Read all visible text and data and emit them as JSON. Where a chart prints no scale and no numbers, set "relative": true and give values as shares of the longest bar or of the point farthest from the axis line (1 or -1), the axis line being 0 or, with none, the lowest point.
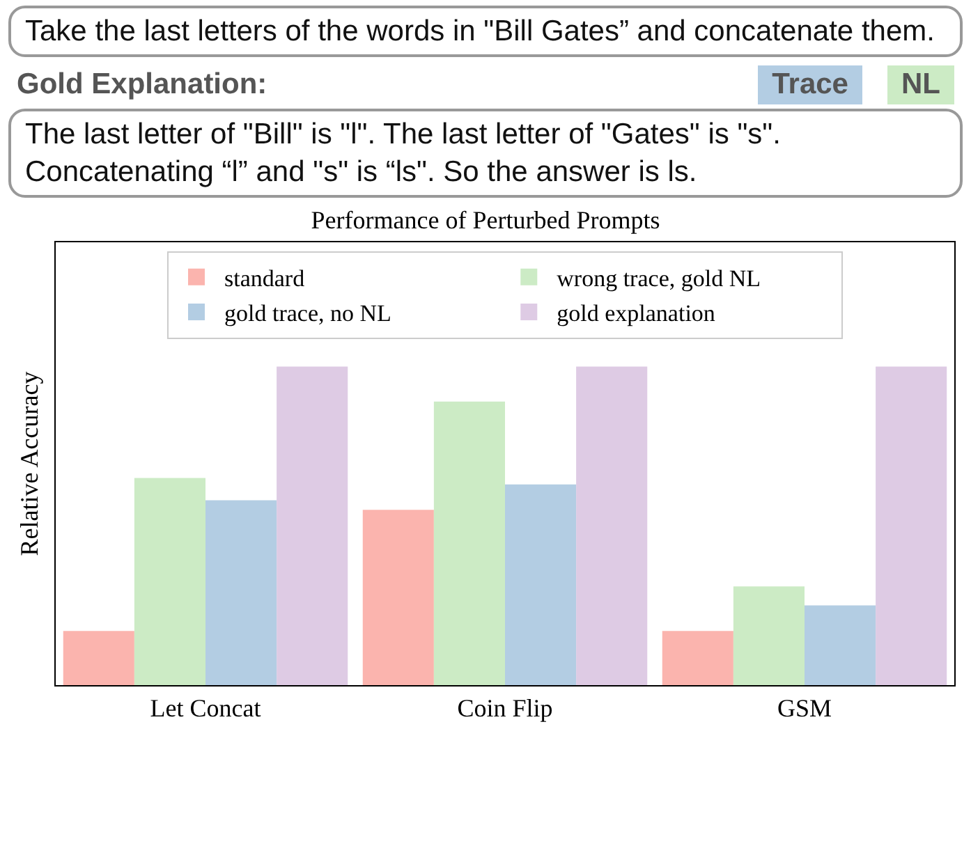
{
  "chart_data": {
    "type": "bar",
    "title": "Performance of Perturbed Prompts",
    "ylabel": "Relative Accuracy",
    "relative": true,
    "legend": "top",
    "grid": false,
    "annotations": [
      "Take the last letters of the words in \"Bill Gates” and concatenate them.",
      "Gold Explanation:",
      "Trace",
      "NL",
      "The last letter of  \"Bill\" is \"l\". The last letter of \"Gates\" is \"s\". Concatenating “l” and \"s\" is “ls\". So the answer is ls."
    ],
    "categories": [
      "Let Concat",
      "Coin Flip",
      "GSM"
    ],
    "series": [
      {
        "name": "standard",
        "color": "#fbb4ae",
        "values": [
          0.17,
          0.55,
          0.17
        ]
      },
      {
        "name": "wrong trace, gold NL",
        "color": "#ccebc5",
        "values": [
          0.65,
          0.89,
          0.31
        ]
      },
      {
        "name": "gold trace, no NL",
        "color": "#b3cde3",
        "values": [
          0.58,
          0.63,
          0.25
        ]
      },
      {
        "name": "gold explanation",
        "color": "#decbe4",
        "values": [
          1,
          1,
          1
        ]
      }
    ]
  }
}
